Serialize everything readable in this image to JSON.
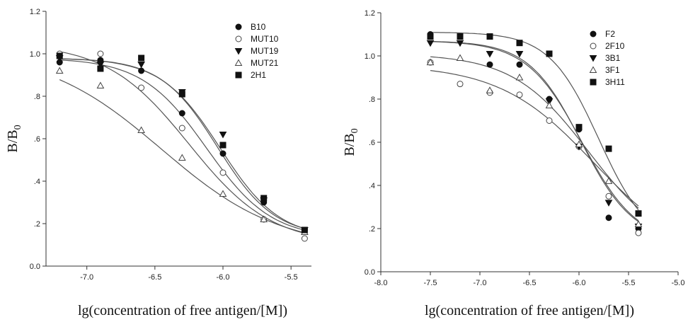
{
  "chart_data": [
    {
      "type": "scatter",
      "xlabel": "lg(concentration of free antigen/[M])",
      "ylabel": "B/B",
      "ylabel_sub": "0",
      "xlim": [
        -7.3,
        -5.35
      ],
      "ylim": [
        0.0,
        1.2
      ],
      "xticks": [
        -7.0,
        -6.5,
        -6.0,
        -5.5
      ],
      "xtick_labels": [
        "-7.0",
        "-6.5",
        "-6.0",
        "-5.5"
      ],
      "yticks": [
        0.0,
        0.2,
        0.4,
        0.6,
        0.8,
        1.0,
        1.2
      ],
      "ytick_labels": [
        "0.0",
        ".2",
        ".4",
        ".6",
        ".8",
        "1.0",
        "1.2"
      ],
      "legend_position": "top-right",
      "x": [
        -7.2,
        -6.9,
        -6.6,
        -6.3,
        -6.0,
        -5.7,
        -5.4
      ],
      "series": [
        {
          "name": "B10",
          "marker": "circle-filled",
          "values": [
            0.96,
            0.97,
            0.92,
            0.72,
            0.53,
            0.3,
            0.17
          ],
          "fit": {
            "top": 0.98,
            "bottom": 0.13,
            "x0": -6.12,
            "k": 4.2
          }
        },
        {
          "name": "MUT10",
          "marker": "circle-open",
          "values": [
            1.0,
            1.0,
            0.84,
            0.65,
            0.44,
            0.22,
            0.13
          ],
          "fit": {
            "top": 1.05,
            "bottom": 0.1,
            "x0": -6.25,
            "k": 3.3
          }
        },
        {
          "name": "MUT19",
          "marker": "triangle-down-filled",
          "values": [
            0.98,
            0.95,
            0.95,
            0.82,
            0.62,
            0.31,
            0.17
          ],
          "fit": {
            "top": 0.98,
            "bottom": 0.13,
            "x0": -6.02,
            "k": 4.6
          }
        },
        {
          "name": "MUT21",
          "marker": "triangle-up-open",
          "values": [
            0.92,
            0.85,
            0.64,
            0.51,
            0.34,
            0.22,
            0.16
          ],
          "fit": {
            "top": 1.02,
            "bottom": 0.08,
            "x0": -6.45,
            "k": 2.3
          }
        },
        {
          "name": "2H1",
          "marker": "square-filled",
          "values": [
            0.99,
            0.93,
            0.98,
            0.81,
            0.57,
            0.32,
            0.17
          ],
          "fit": {
            "top": 0.98,
            "bottom": 0.14,
            "x0": -6.04,
            "k": 4.8
          }
        }
      ]
    },
    {
      "type": "scatter",
      "xlabel": "lg(concentration of free antigen/[M])",
      "ylabel": "B/B",
      "ylabel_sub": "0",
      "xlim": [
        -8.0,
        -5.0
      ],
      "ylim": [
        0.0,
        1.2
      ],
      "xticks": [
        -8.0,
        -7.5,
        -7.0,
        -6.5,
        -6.0,
        -5.5,
        -5.0
      ],
      "xtick_labels": [
        "-8.0",
        "-7.5",
        "-7.0",
        "-6.5",
        "-6.0",
        "-5.5",
        "-5.0"
      ],
      "yticks": [
        0.0,
        0.2,
        0.4,
        0.6,
        0.8,
        1.0,
        1.2
      ],
      "ytick_labels": [
        "0.0",
        ".2",
        ".4",
        ".6",
        ".8",
        "1.0",
        "1.2"
      ],
      "legend_position": "top-right",
      "x": [
        -7.5,
        -7.2,
        -6.9,
        -6.6,
        -6.3,
        -6.0,
        -5.7,
        -5.4
      ],
      "series": [
        {
          "name": "F2",
          "marker": "circle-filled",
          "values": [
            1.1,
            1.09,
            0.96,
            0.96,
            0.8,
            0.66,
            0.25,
            0.2
          ],
          "fit": {
            "top": 1.07,
            "bottom": 0.14,
            "x0": -5.98,
            "k": 3.8
          }
        },
        {
          "name": "2F10",
          "marker": "circle-open",
          "values": [
            0.97,
            0.87,
            0.83,
            0.82,
            0.7,
            0.58,
            0.35,
            0.18
          ],
          "fit": {
            "top": 0.96,
            "bottom": 0.05,
            "x0": -5.85,
            "k": 2.1
          }
        },
        {
          "name": "3B1",
          "marker": "triangle-down-filled",
          "values": [
            1.06,
            1.06,
            1.01,
            1.01,
            0.79,
            0.58,
            0.32,
            0.21
          ],
          "fit": {
            "top": 1.07,
            "bottom": 0.13,
            "x0": -5.97,
            "k": 3.6
          }
        },
        {
          "name": "3F1",
          "marker": "triangle-up-open",
          "values": [
            0.97,
            0.99,
            0.84,
            0.9,
            0.77,
            0.59,
            0.42,
            0.22
          ],
          "fit": {
            "top": 1.01,
            "bottom": 0.1,
            "x0": -5.9,
            "k": 2.6
          }
        },
        {
          "name": "3H11",
          "marker": "square-filled",
          "values": [
            1.09,
            1.09,
            1.09,
            1.06,
            1.01,
            0.67,
            0.57,
            0.27
          ],
          "fit": {
            "top": 1.11,
            "bottom": 0.12,
            "x0": -5.8,
            "k": 4.0
          }
        }
      ]
    }
  ]
}
